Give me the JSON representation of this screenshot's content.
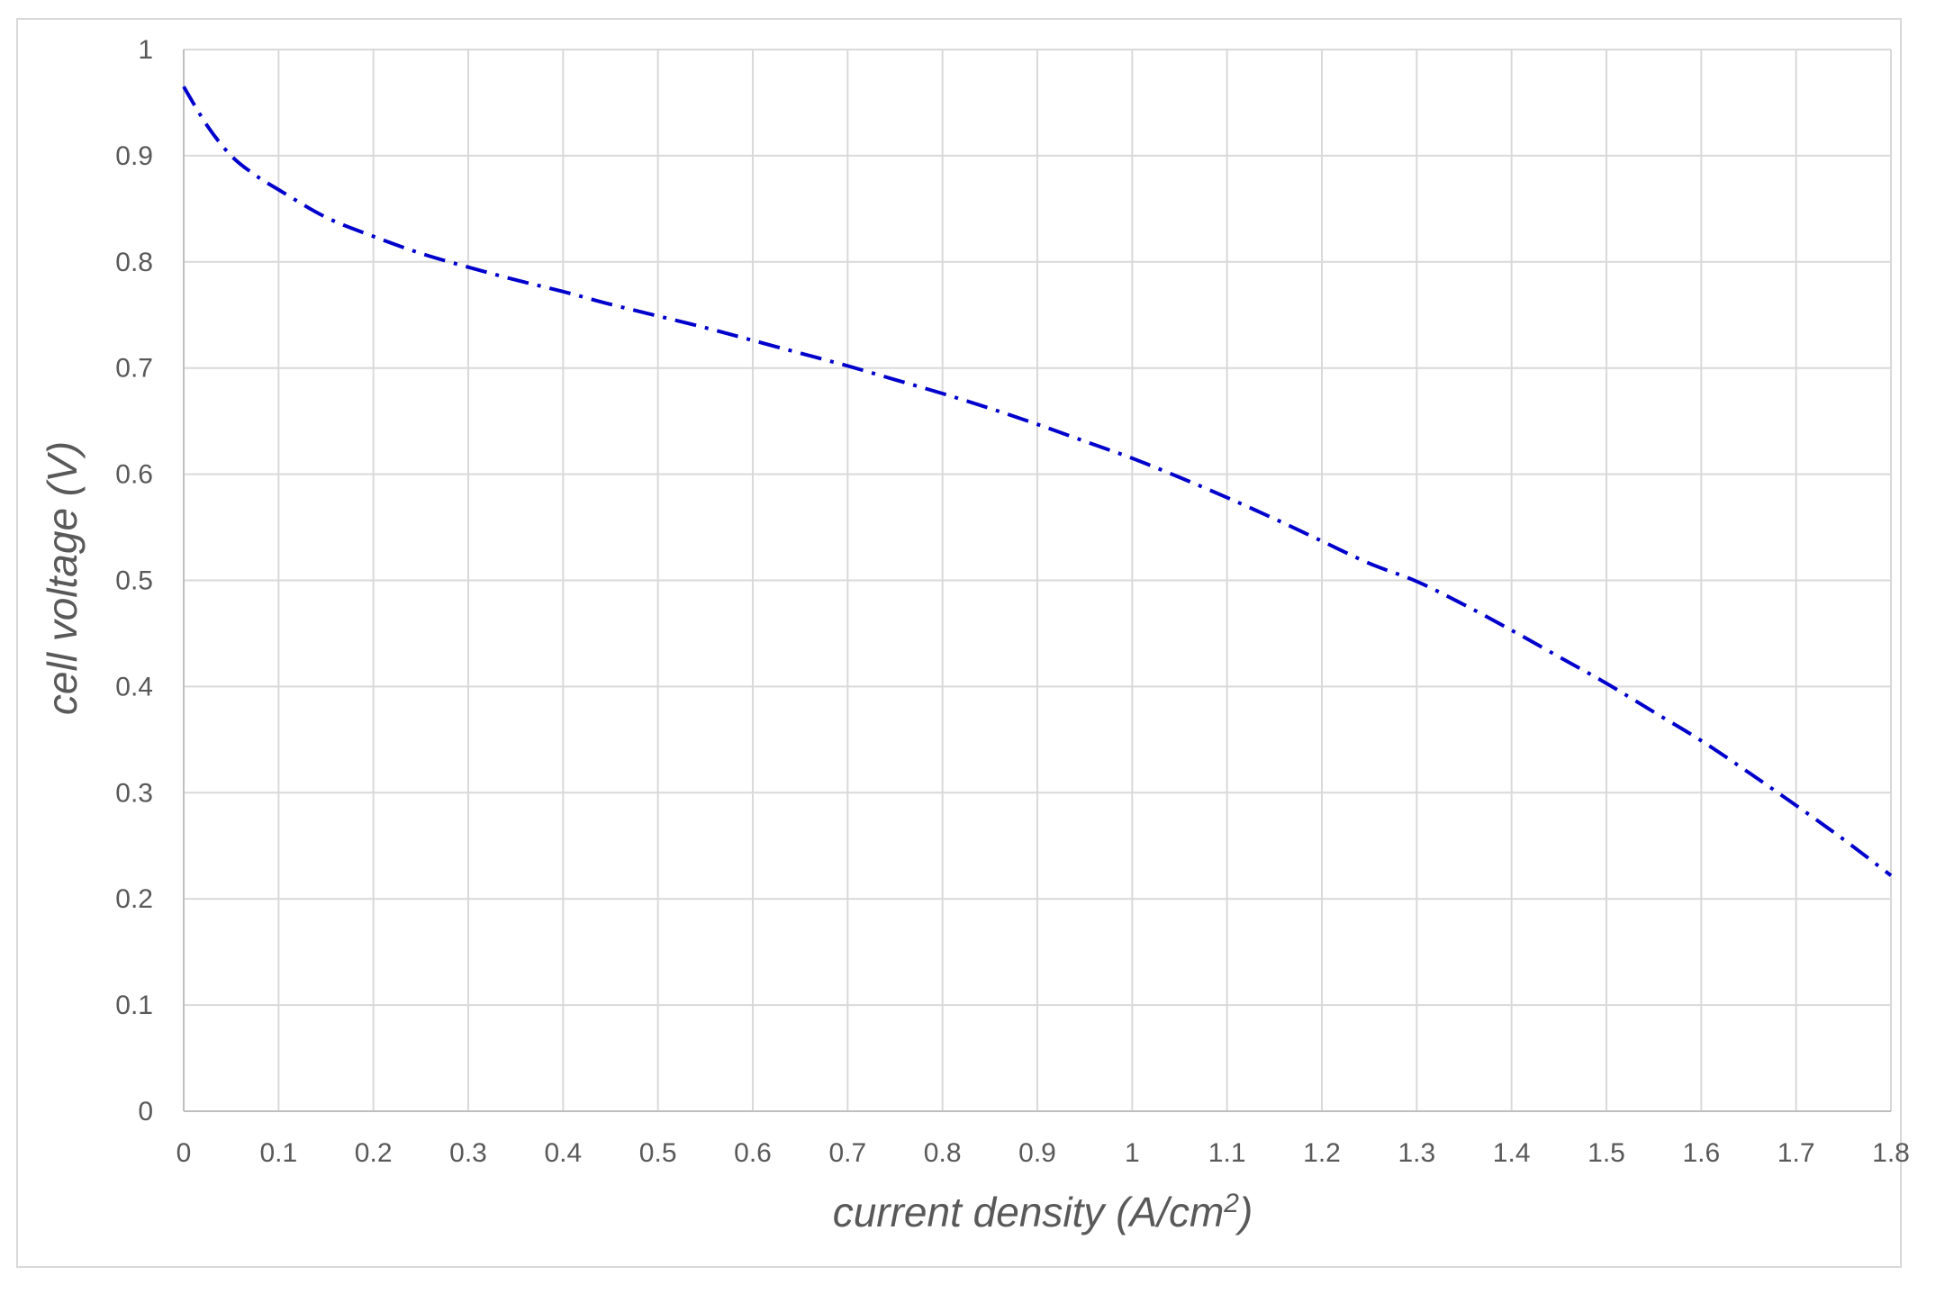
{
  "chart_data": {
    "type": "line",
    "title": "",
    "xlabel": "current density (A/cm",
    "xlabel_superscript": "2",
    "xlabel_suffix": ")",
    "ylabel": "cell voltage (V)",
    "xlim": [
      0,
      1.8
    ],
    "ylim": [
      0,
      1
    ],
    "x_ticks": [
      "0",
      "0.1",
      "0.2",
      "0.3",
      "0.4",
      "0.5",
      "0.6",
      "0.7",
      "0.8",
      "0.9",
      "1",
      "1.1",
      "1.2",
      "1.3",
      "1.4",
      "1.5",
      "1.6",
      "1.7",
      "1.8"
    ],
    "y_ticks": [
      "0",
      "0.1",
      "0.2",
      "0.3",
      "0.4",
      "0.5",
      "0.6",
      "0.7",
      "0.8",
      "0.9",
      "1"
    ],
    "grid": true,
    "legend": "none",
    "series": [
      {
        "color": "#0000cc",
        "line_style": "dash-dot",
        "x": [
          0,
          0.025,
          0.05,
          0.075,
          0.1,
          0.15,
          0.2,
          0.25,
          0.3,
          0.35,
          0.4,
          0.45,
          0.5,
          0.55,
          0.6,
          0.65,
          0.7,
          0.75,
          0.8,
          0.85,
          0.9,
          0.95,
          1.0,
          1.05,
          1.1,
          1.15,
          1.2,
          1.25,
          1.3,
          1.35,
          1.4,
          1.45,
          1.5,
          1.55,
          1.6,
          1.65,
          1.7,
          1.75,
          1.8
        ],
        "y": [
          0.965,
          0.928,
          0.9,
          0.882,
          0.868,
          0.842,
          0.824,
          0.808,
          0.795,
          0.783,
          0.772,
          0.76,
          0.749,
          0.738,
          0.726,
          0.714,
          0.702,
          0.689,
          0.676,
          0.662,
          0.647,
          0.631,
          0.615,
          0.597,
          0.578,
          0.558,
          0.537,
          0.516,
          0.499,
          0.477,
          0.453,
          0.428,
          0.403,
          0.376,
          0.349,
          0.319,
          0.288,
          0.256,
          0.222
        ]
      }
    ]
  }
}
